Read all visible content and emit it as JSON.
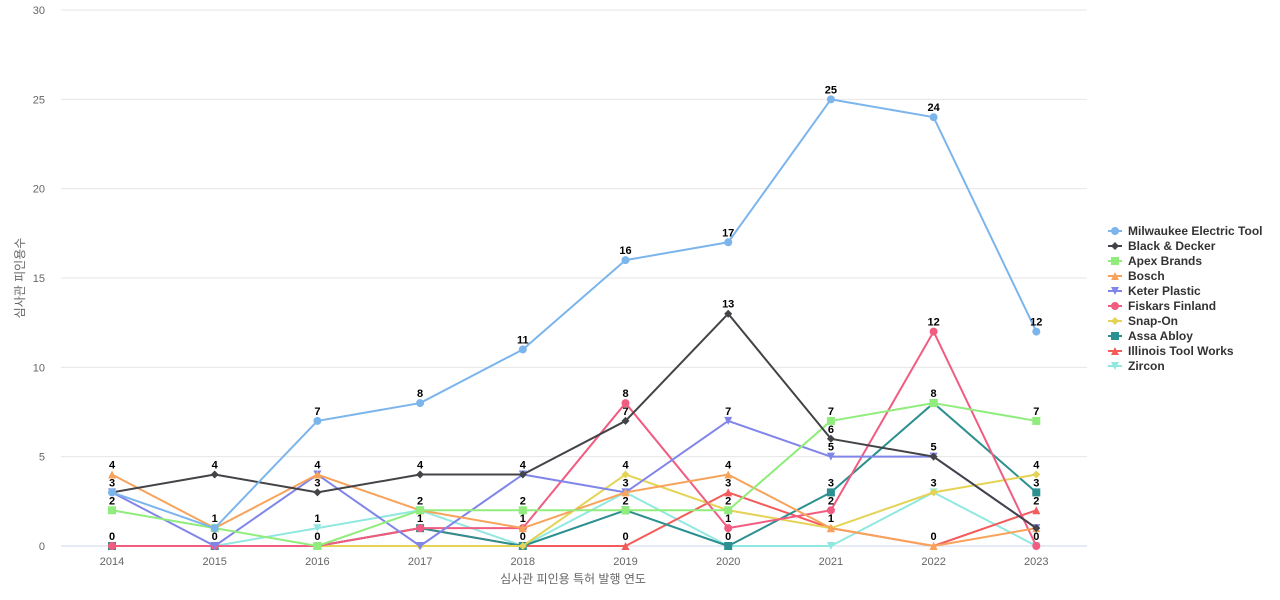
{
  "chart_data": {
    "type": "line",
    "title": "",
    "xlabel": "심사관 피인용 특허 발행 연도",
    "ylabel": "심사관 피인용수",
    "x": [
      "2014",
      "2015",
      "2016",
      "2017",
      "2018",
      "2019",
      "2020",
      "2021",
      "2022",
      "2023"
    ],
    "ylim": [
      0,
      30
    ],
    "yticks": [
      "0",
      "5",
      "10",
      "15",
      "20",
      "25",
      "30"
    ],
    "grid": true,
    "legend": "right",
    "series": [
      {
        "name": "Milwaukee Electric Tool",
        "color": "#7cb5ec",
        "marker": "circle",
        "values": [
          3,
          1,
          7,
          8,
          11,
          16,
          17,
          25,
          24,
          12
        ]
      },
      {
        "name": "Black & Decker",
        "color": "#434348",
        "marker": "diamond",
        "values": [
          3,
          4,
          3,
          4,
          4,
          7,
          13,
          6,
          5,
          1
        ]
      },
      {
        "name": "Apex Brands",
        "color": "#90ed7d",
        "marker": "square",
        "values": [
          2,
          1,
          0,
          2,
          2,
          2,
          2,
          7,
          8,
          7
        ]
      },
      {
        "name": "Bosch",
        "color": "#f7a35c",
        "marker": "triangle",
        "values": [
          4,
          1,
          4,
          2,
          1,
          3,
          4,
          1,
          0,
          1
        ]
      },
      {
        "name": "Keter Plastic",
        "color": "#8085e9",
        "marker": "triangle-down",
        "values": [
          3,
          0,
          4,
          0,
          4,
          3,
          7,
          5,
          5,
          1
        ]
      },
      {
        "name": "Fiskars Finland",
        "color": "#f15c80",
        "marker": "circle",
        "values": [
          0,
          0,
          0,
          1,
          1,
          8,
          1,
          2,
          12,
          0
        ]
      },
      {
        "name": "Snap-On",
        "color": "#e4d354",
        "marker": "diamond",
        "values": [
          0,
          0,
          0,
          0,
          0,
          4,
          2,
          1,
          3,
          4
        ]
      },
      {
        "name": "Assa Abloy",
        "color": "#2b908f",
        "marker": "square",
        "values": [
          0,
          0,
          0,
          1,
          0,
          2,
          0,
          3,
          8,
          3
        ]
      },
      {
        "name": "Illinois Tool Works",
        "color": "#f45b5b",
        "marker": "triangle",
        "values": [
          0,
          0,
          0,
          1,
          0,
          0,
          3,
          1,
          0,
          2
        ]
      },
      {
        "name": "Zircon",
        "color": "#91e8e1",
        "marker": "triangle-down",
        "values": [
          0,
          0,
          1,
          2,
          0,
          3,
          0,
          0,
          3,
          0
        ]
      }
    ],
    "data_labels": [
      {
        "series": "Milwaukee Electric Tool",
        "values": [
          "3",
          "1",
          "7",
          "8",
          "11",
          "16",
          "17",
          "25",
          "24",
          "12"
        ]
      },
      {
        "series": "Black & Decker",
        "values": [
          "",
          "4",
          "3",
          "4",
          "4",
          "7",
          "13",
          "6",
          "5",
          ""
        ]
      },
      {
        "series": "Apex Brands",
        "values": [
          "2",
          "",
          "",
          "2",
          "2",
          "",
          "",
          "7",
          "8",
          "7"
        ]
      },
      {
        "series": "Bosch",
        "values": [
          "4",
          "",
          "4",
          "",
          "",
          "3",
          "4",
          "",
          "0",
          ""
        ]
      },
      {
        "series": "Keter Plastic",
        "values": [
          "",
          "0",
          "",
          "",
          "",
          "",
          "7",
          "5",
          "",
          ""
        ]
      },
      {
        "series": "Fiskars Finland",
        "values": [
          "0",
          "",
          "0",
          "",
          "1",
          "8",
          "1",
          "2",
          "12",
          "0"
        ]
      },
      {
        "series": "Snap-On",
        "values": [
          "",
          "",
          "",
          "",
          "",
          "4",
          "2",
          "",
          "3",
          "4"
        ]
      },
      {
        "series": "Assa Abloy",
        "values": [
          "",
          "",
          "",
          "1",
          "0",
          "2",
          "0",
          "3",
          "",
          "3"
        ]
      },
      {
        "series": "Illinois Tool Works",
        "values": [
          "",
          "",
          "",
          "",
          "",
          "0",
          "3",
          "1",
          "",
          "2"
        ]
      },
      {
        "series": "Zircon",
        "values": [
          "",
          "",
          "1",
          "",
          "",
          "",
          "",
          "",
          "",
          ""
        ]
      }
    ]
  }
}
